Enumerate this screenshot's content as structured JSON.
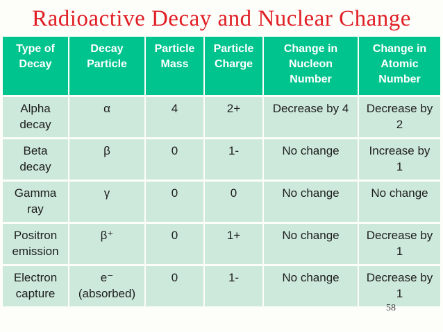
{
  "title": "Radioactive Decay and Nuclear Change",
  "page_number": "58",
  "colors": {
    "background": "#fdfdfa",
    "title_text": "#e01f25",
    "header_bg": "#00c48e",
    "header_text": "#ffffff",
    "row_bg": "#cde9dc",
    "body_text": "#1d1d1b",
    "page_number_text": "#40403e"
  },
  "table": {
    "columns": [
      "Type of\nDecay",
      "Decay\nParticle",
      "Particle\nMass",
      "Particle\nCharge",
      "Change in\nNucleon\nNumber",
      "Change in\nAtomic\nNumber"
    ],
    "rows": [
      [
        "Alpha\ndecay",
        "α",
        "4",
        "2+",
        "Decrease by 4",
        "Decrease by\n2"
      ],
      [
        "Beta\ndecay",
        "β",
        "0",
        "1-",
        "No change",
        "Increase by\n1"
      ],
      [
        "Gamma\nray",
        "γ",
        "0",
        "0",
        "No change",
        "No change"
      ],
      [
        "Positron\nemission",
        "β⁺",
        "0",
        "1+",
        "No change",
        "Decrease by\n1"
      ],
      [
        "Electron\ncapture",
        "e⁻\n(absorbed)",
        "0",
        "1-",
        "No change",
        "Decrease by\n1"
      ]
    ]
  }
}
